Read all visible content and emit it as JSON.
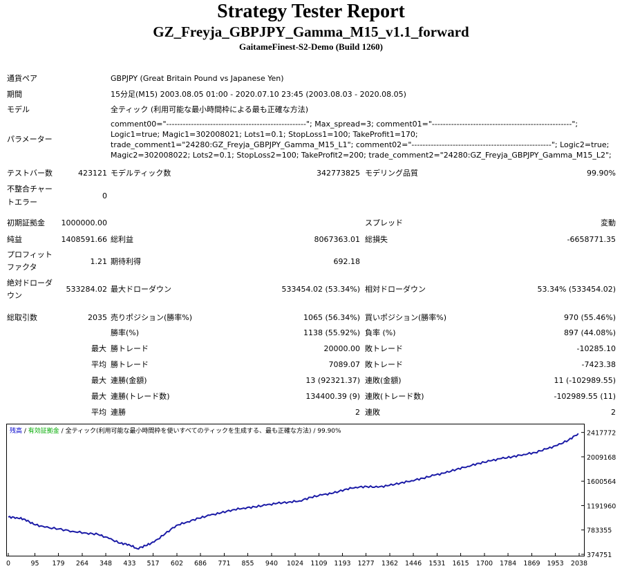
{
  "report_title": "Strategy Tester Report",
  "ea_name": "GZ_Freyja_GBPJPY_Gamma_M15_v1.1_forward",
  "server": "GaitameFinest-S2-Demo (Build 1260)",
  "info": {
    "symbol_label": "通貨ペア",
    "symbol_value": "GBPJPY (Great Britain Pound vs Japanese Yen)",
    "period_label": "期間",
    "period_value": "15分足(M15) 2003.08.05 01:00 - 2020.07.10 23:45 (2003.08.03 - 2020.08.05)",
    "model_label": "モデル",
    "model_value": "全ティック (利用可能な最小時間枠による最も正確な方法)",
    "params_label": "パラメーター",
    "params_lines": [
      "comment00=\"---------------------------------------------------\"; Max_spread=3; comment01=\"---------------------------------------------------\";",
      "Logic1=true; Magic1=302008021; Lots1=0.1; StopLoss1=100; TakeProfit1=170;",
      "trade_comment1=\"24280:GZ_Freyja_GBPJPY_Gamma_M15_L1\"; comment02=\"---------------------------------------------------\"; Logic2=true;",
      "Magic2=302008022; Lots2=0.1; StopLoss2=100; TakeProfit2=200; trade_comment2=\"24280:GZ_Freyja_GBPJPY_Gamma_M15_L2\";"
    ]
  },
  "stats": {
    "bars_label": "テストバー数",
    "bars_value": "423121",
    "ticks_label": "モデルティック数",
    "ticks_value": "342773825",
    "quality_label": "モデリング品質",
    "quality_value": "99.90%",
    "mismatch_label_1": "不整合チャー",
    "mismatch_label_2": "トエラー",
    "mismatch_value": "0",
    "deposit_label": "初期証拠金",
    "deposit_value": "1000000.00",
    "spread_label": "スプレッド",
    "spread_value": "変動",
    "net_label": "純益",
    "net_value": "1408591.66",
    "gross_profit_label": "総利益",
    "gross_profit_value": "8067363.01",
    "gross_loss_label": "総損失",
    "gross_loss_value": "-6658771.35",
    "pf_label_1": "プロフィット",
    "pf_label_2": "ファクタ",
    "pf_value": "1.21",
    "expected_label": "期待利得",
    "expected_value": "692.18",
    "abs_dd_label_1": "絶対ドローダ",
    "abs_dd_label_2": "ウン",
    "abs_dd_value": "533284.02",
    "max_dd_label": "最大ドローダウン",
    "max_dd_value": "533454.02 (53.34%)",
    "rel_dd_label": "相対ドローダウン",
    "rel_dd_value": "53.34% (533454.02)",
    "trades_label": "総取引数",
    "trades_value": "2035",
    "short_label": "売りポジション(勝率%)",
    "short_value": "1065 (56.34%)",
    "long_label": "買いポジション(勝率%)",
    "long_value": "970 (55.46%)",
    "winrate_label": "勝率(%)",
    "winrate_value": "1138 (55.92%)",
    "lossrate_label": "負率 (%)",
    "lossrate_value": "897 (44.08%)",
    "max_prefix": "最大",
    "avg_prefix": "平均",
    "largest_win_label": "勝トレード",
    "largest_win_value": "20000.00",
    "largest_loss_label": "敗トレード",
    "largest_loss_value": "-10285.10",
    "avg_win_label": "勝トレード",
    "avg_win_value": "7089.07",
    "avg_loss_label": "敗トレード",
    "avg_loss_value": "-7423.38",
    "max_consec_win_amt_label": "連勝(金額)",
    "max_consec_win_amt_value": "13 (92321.37)",
    "max_consec_loss_amt_label": "連敗(金額)",
    "max_consec_loss_amt_value": "11 (-102989.55)",
    "max_consec_win_cnt_label": "連勝(トレード数)",
    "max_consec_win_cnt_value": "134400.39 (9)",
    "max_consec_loss_cnt_label": "連敗(トレード数)",
    "max_consec_loss_cnt_value": "-102989.55 (11)",
    "avg_consec_win_label": "連勝",
    "avg_consec_win_value": "2",
    "avg_consec_loss_label": "連敗",
    "avg_consec_loss_value": "2"
  },
  "chart_legend": {
    "balance": "残高",
    "sep1": " / ",
    "equity": "有効証拠金",
    "sep2": " / ",
    "model_info": "全ティック(利用可能な最小時間枠を使いすべてのティックを生成する、最も正確な方法) / 99.90%",
    "balance_color": "#0000cc",
    "equity_color": "#00aa00"
  },
  "chart_data": {
    "type": "line",
    "title": "",
    "xlabel": "",
    "ylabel": "",
    "x_ticks": [
      0,
      95,
      179,
      264,
      348,
      433,
      517,
      602,
      686,
      771,
      855,
      940,
      1024,
      1109,
      1193,
      1277,
      1362,
      1446,
      1531,
      1615,
      1700,
      1784,
      1869,
      1953,
      2038
    ],
    "y_ticks": [
      374751,
      783355,
      1191960,
      1600564,
      2009168,
      2417772
    ],
    "xlim": [
      0,
      2035
    ],
    "ylim": [
      374751,
      2460000
    ],
    "grid": false,
    "series": [
      {
        "color": "#1a1aa6",
        "x": [
          0,
          30,
          60,
          90,
          130,
          180,
          230,
          280,
          320,
          360,
          400,
          430,
          460,
          490,
          520,
          560,
          600,
          640,
          680,
          720,
          760,
          800,
          840,
          880,
          920,
          960,
          1000,
          1040,
          1080,
          1120,
          1160,
          1200,
          1240,
          1280,
          1320,
          1360,
          1400,
          1440,
          1480,
          1520,
          1560,
          1600,
          1640,
          1680,
          1720,
          1760,
          1800,
          1840,
          1880,
          1920,
          1960,
          2000,
          2035
        ],
        "y": [
          1000000,
          990000,
          960000,
          880000,
          830000,
          800000,
          760000,
          730000,
          710000,
          640000,
          560000,
          540000,
          470000,
          520000,
          580000,
          720000,
          860000,
          920000,
          980000,
          1030000,
          1070000,
          1120000,
          1150000,
          1170000,
          1200000,
          1230000,
          1250000,
          1270000,
          1330000,
          1370000,
          1400000,
          1460000,
          1500000,
          1510000,
          1500000,
          1530000,
          1570000,
          1610000,
          1650000,
          1700000,
          1740000,
          1800000,
          1850000,
          1900000,
          1940000,
          1980000,
          2010000,
          2050000,
          2080000,
          2140000,
          2200000,
          2290000,
          2400000
        ]
      }
    ]
  }
}
